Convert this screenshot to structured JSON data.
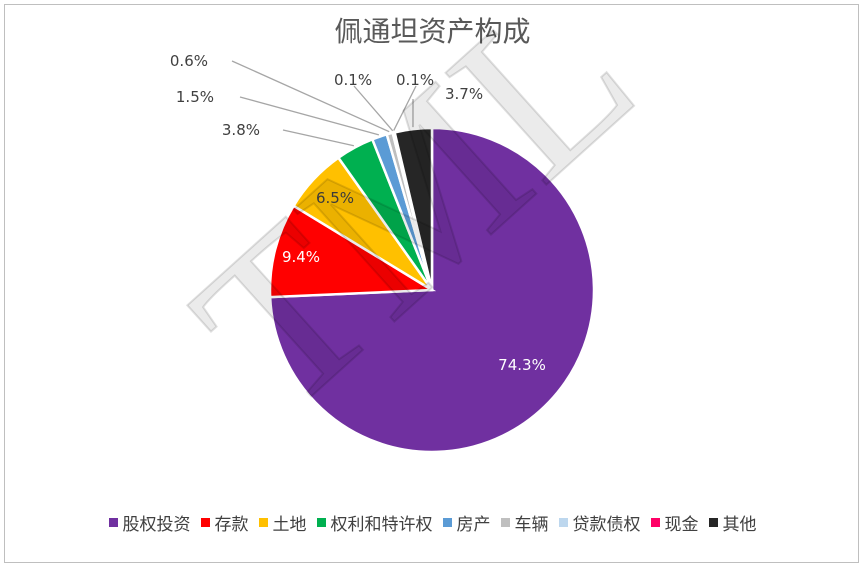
{
  "chart_data": {
    "type": "pie",
    "title": "佩通坦资产构成",
    "categories": [
      "股权投资",
      "存款",
      "土地",
      "权利和特许权",
      "房产",
      "车辆",
      "贷款债权",
      "现金",
      "其他"
    ],
    "values": [
      74.3,
      9.4,
      6.5,
      3.8,
      1.5,
      0.6,
      0.1,
      0.1,
      3.7
    ],
    "labels": [
      "74.3%",
      "9.4%",
      "6.5%",
      "3.8%",
      "1.5%",
      "0.6%",
      "0.1%",
      "0.1%",
      "3.7%"
    ],
    "colors": [
      "#7030a0",
      "#ff0000",
      "#ffc000",
      "#00b050",
      "#5b9bd5",
      "#bfbfbf",
      "#bdd7ee",
      "#ff0066",
      "#262626"
    ],
    "legend_position": "bottom"
  },
  "watermark": "TML"
}
